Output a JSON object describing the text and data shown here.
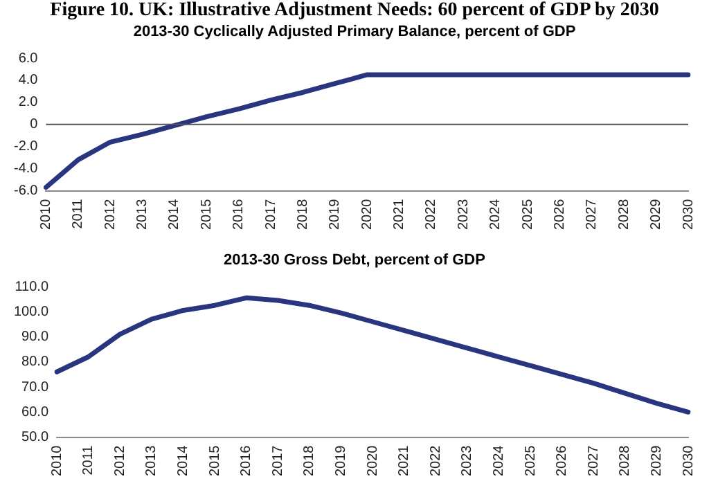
{
  "chart_data": [
    {
      "type": "line",
      "title": "Figure 10. UK: Illustrative Adjustment Needs: 60 percent of GDP by 2030",
      "subtitle": "2013-30 Cyclically Adjusted Primary Balance, percent of GDP",
      "categories": [
        "2010",
        "2011",
        "2012",
        "2013",
        "2014",
        "2015",
        "2016",
        "2017",
        "2018",
        "2019",
        "2020",
        "2021",
        "2022",
        "2023",
        "2024",
        "2025",
        "2026",
        "2027",
        "2028",
        "2029",
        "2030"
      ],
      "series": [
        {
          "color": "#2a3580",
          "values": [
            -5.7,
            -3.2,
            -1.6,
            -0.9,
            -0.1,
            0.7,
            1.4,
            2.2,
            2.9,
            3.7,
            4.5,
            4.5,
            4.5,
            4.5,
            4.5,
            4.5,
            4.5,
            4.5,
            4.5,
            4.5,
            4.5
          ]
        }
      ],
      "ylim": [
        -6,
        6
      ],
      "yticks": [
        {
          "value": -6,
          "label": "-6.0"
        },
        {
          "value": -4,
          "label": "-4.0"
        },
        {
          "value": -2,
          "label": "-2.0"
        },
        0,
        {
          "value": 2,
          "label": "2.0"
        },
        {
          "value": 4,
          "label": "4.0"
        },
        {
          "value": 6,
          "label": "6.0"
        }
      ],
      "ref_lines": [
        {
          "axis": "y",
          "value": 0,
          "color": "#555555"
        }
      ],
      "grid": false,
      "legend": false,
      "marker": "none",
      "line_style": "solid"
    },
    {
      "type": "line",
      "title": "2013-30 Gross Debt, percent of GDP",
      "categories": [
        "2010",
        "2011",
        "2012",
        "2013",
        "2014",
        "2015",
        "2016",
        "2017",
        "2018",
        "2019",
        "2020",
        "2021",
        "2022",
        "2023",
        "2024",
        "2025",
        "2026",
        "2027",
        "2028",
        "2029",
        "2030"
      ],
      "series": [
        {
          "color": "#2a3580",
          "values": [
            76,
            82,
            91,
            97,
            100.5,
            102.5,
            105.5,
            104.5,
            102.5,
            99.5,
            96,
            92.5,
            89,
            85.5,
            82,
            78.5,
            75,
            71.5,
            67.5,
            63.5,
            60
          ]
        }
      ],
      "ylim": [
        50,
        110
      ],
      "yticks": [
        {
          "value": 50,
          "label": "50.0"
        },
        {
          "value": 60,
          "label": "60.0"
        },
        {
          "value": 70,
          "label": "70.0"
        },
        {
          "value": 80,
          "label": "80.0"
        },
        {
          "value": 90,
          "label": "90.0"
        },
        {
          "value": 100,
          "label": "100.0"
        },
        {
          "value": 110,
          "label": "110.0"
        }
      ],
      "grid": false,
      "legend": false,
      "marker": "none",
      "line_style": "solid"
    }
  ]
}
